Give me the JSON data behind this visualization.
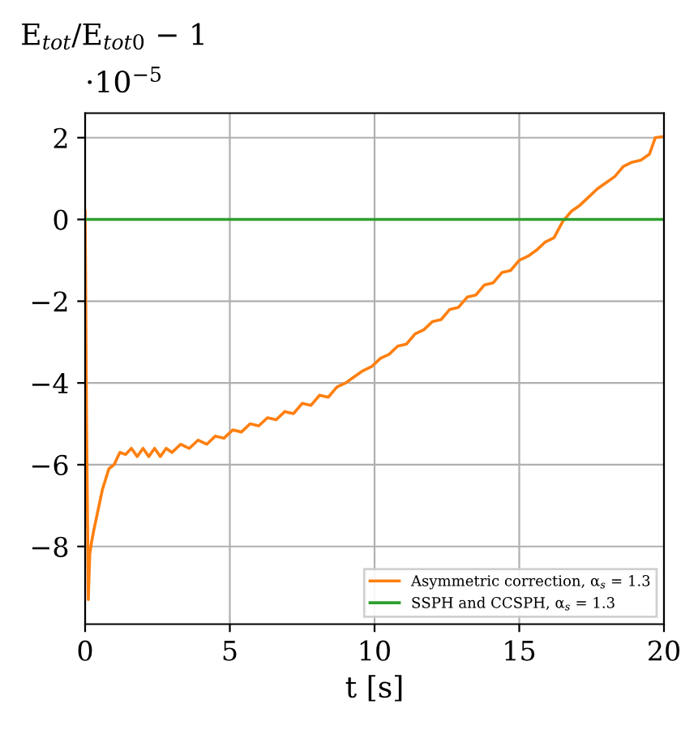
{
  "chart_data": {
    "type": "line",
    "ylabel": "E$_{tot}$/E$_{tot0}$ − 1",
    "xlabel": "t [s]",
    "annotations": [
      "·10$^{−5}$"
    ],
    "xlim": [
      0,
      20
    ],
    "xticks": [
      0,
      5,
      10,
      15,
      20
    ],
    "ylim": [
      -9.9,
      2.6
    ],
    "yticks": [
      {
        "value": -8,
        "label": "−8"
      },
      {
        "value": -6,
        "label": "−6"
      },
      {
        "value": -4,
        "label": "−4"
      },
      {
        "value": -2,
        "label": "−2"
      },
      0,
      2
    ],
    "grid": true,
    "legend": "bottom right",
    "line_style": "solid",
    "series": [
      {
        "name": "Asymmetric correction, α$_{s}$ = 1.3",
        "color": "#ff7f0e",
        "x": [
          0,
          0.05,
          0.11,
          0.16,
          0.22,
          0.3,
          0.45,
          0.6,
          0.82,
          1.0,
          1.2,
          1.4,
          1.6,
          1.8,
          2.0,
          2.2,
          2.4,
          2.6,
          2.8,
          3.0,
          3.3,
          3.6,
          3.9,
          4.2,
          4.5,
          4.8,
          5.1,
          5.4,
          5.7,
          6.0,
          6.3,
          6.6,
          6.9,
          7.2,
          7.5,
          7.8,
          8.1,
          8.4,
          8.7,
          9.0,
          9.3,
          9.6,
          9.9,
          10.2,
          10.5,
          10.8,
          11.1,
          11.4,
          11.7,
          12.0,
          12.3,
          12.6,
          12.9,
          13.2,
          13.5,
          13.8,
          14.1,
          14.4,
          14.7,
          15.0,
          15.3,
          15.6,
          15.9,
          16.2,
          16.5,
          16.8,
          17.1,
          17.4,
          17.7,
          18.0,
          18.3,
          18.6,
          18.9,
          19.2,
          19.5,
          19.7,
          20
        ],
        "values": [
          0.2,
          -5,
          -9.3,
          -8.2,
          -7.9,
          -7.6,
          -7.1,
          -6.6,
          -6.1,
          -6.0,
          -5.7,
          -5.75,
          -5.6,
          -5.8,
          -5.6,
          -5.8,
          -5.6,
          -5.8,
          -5.6,
          -5.7,
          -5.5,
          -5.6,
          -5.4,
          -5.5,
          -5.3,
          -5.35,
          -5.15,
          -5.2,
          -5.0,
          -5.05,
          -4.85,
          -4.9,
          -4.7,
          -4.75,
          -4.5,
          -4.55,
          -4.3,
          -4.35,
          -4.1,
          -4.0,
          -3.85,
          -3.7,
          -3.6,
          -3.4,
          -3.3,
          -3.1,
          -3.05,
          -2.8,
          -2.7,
          -2.5,
          -2.45,
          -2.2,
          -2.15,
          -1.9,
          -1.85,
          -1.6,
          -1.55,
          -1.3,
          -1.25,
          -1.0,
          -0.9,
          -0.75,
          -0.55,
          -0.45,
          -0.05,
          0.2,
          0.35,
          0.55,
          0.75,
          0.9,
          1.05,
          1.3,
          1.4,
          1.45,
          1.6,
          2.0,
          2.03
        ]
      },
      {
        "name": "SSPH and CCSPH, α$_{s}$ = 1.3",
        "color": "#2ca02c",
        "x": [
          0,
          20
        ],
        "values": [
          0,
          0
        ]
      }
    ]
  }
}
